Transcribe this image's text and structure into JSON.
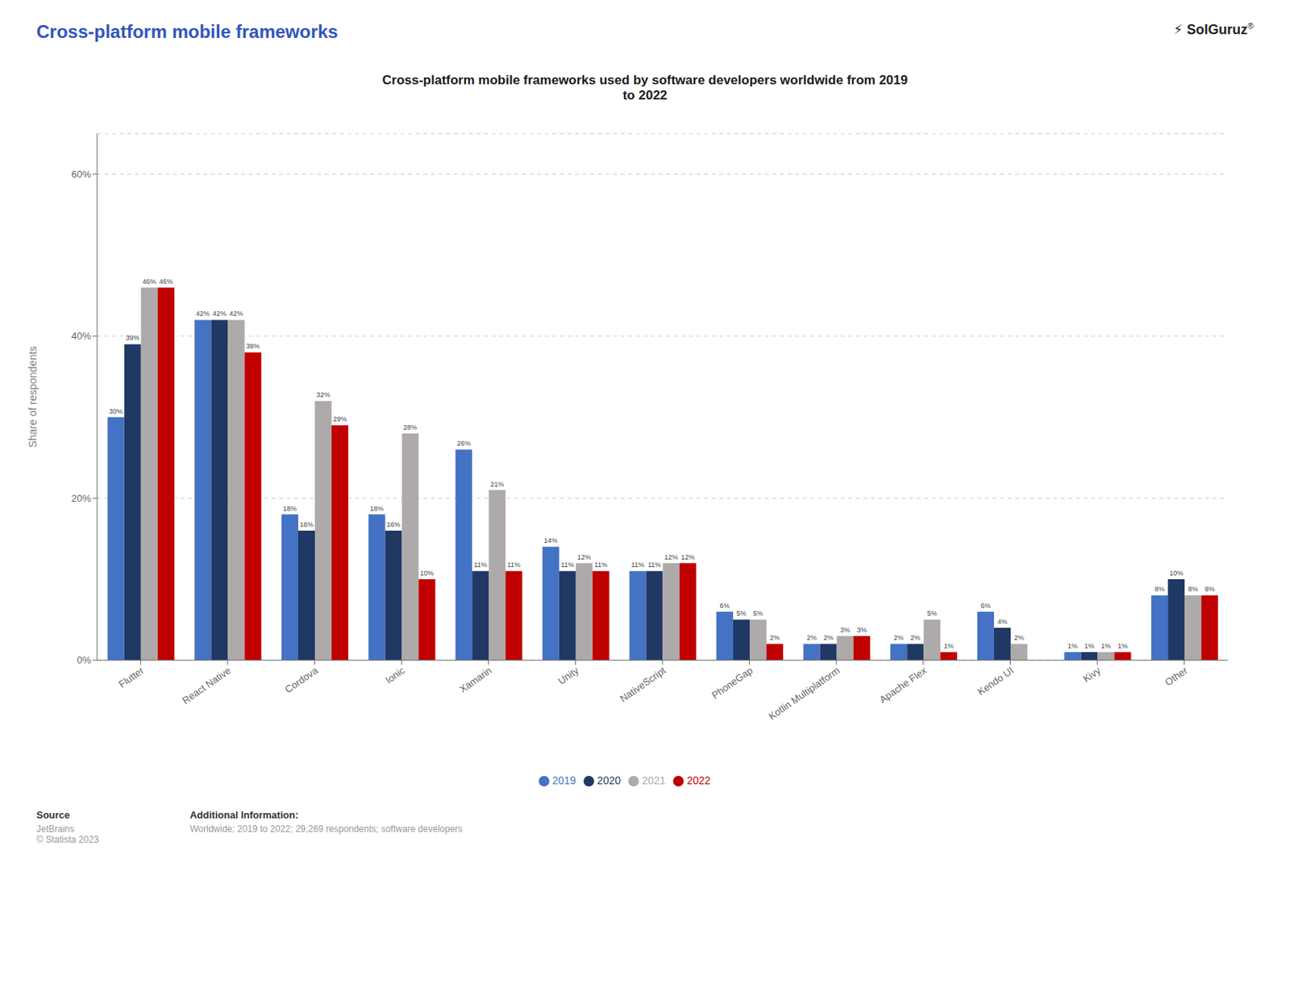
{
  "chart_data": {
    "type": "bar",
    "title": "Cross-platform mobile frameworks",
    "subtitle": "Cross-platform mobile frameworks used by software developers worldwide from 2019\nto 2022",
    "y_label": "Share of respondents",
    "categories": [
      "Flutter",
      "React Native",
      "Cordova",
      "Ionic",
      "Xamarin",
      "Unity",
      "NativeScript",
      "PhoneGap",
      "Kotlin Multiplatform",
      "Apache Flex",
      "Kendo UI",
      "Kivy",
      "Other"
    ],
    "series": [
      {
        "name": "2019",
        "color": "#4472C4",
        "values": [
          30,
          42,
          18,
          18,
          26,
          14,
          11,
          6,
          2,
          2,
          6,
          1,
          8
        ],
        "value_labels": [
          "30%",
          "42%",
          "18%",
          "18%",
          "26%",
          "14%",
          "11%",
          "6%",
          "2%",
          "2%",
          "6%",
          "1%",
          "8%"
        ]
      },
      {
        "name": "2020",
        "color": "#1F3864",
        "values": [
          39,
          42,
          16,
          16,
          11,
          11,
          11,
          5,
          2,
          2,
          4,
          1,
          10
        ],
        "value_labels": [
          "39%",
          "42%",
          "16%",
          "16%",
          "11%",
          "11%",
          "11%",
          "5%",
          "2%",
          "2%",
          "4%",
          "1%",
          "10%"
        ]
      },
      {
        "name": "2021",
        "color": "#AEAAAA",
        "values": [
          46,
          42,
          32,
          28,
          21,
          12,
          12,
          5,
          3,
          5,
          2,
          1,
          8
        ],
        "value_labels": [
          "46%",
          "42%",
          "32%",
          "28%",
          "21%",
          "12%",
          "12%",
          "5%",
          "3%",
          "5%",
          "2%",
          "1%",
          "8%"
        ]
      },
      {
        "name": "2022",
        "color": "#C00000",
        "values": [
          46,
          38,
          29,
          10,
          11,
          11,
          12,
          2,
          3,
          1,
          0,
          1,
          8
        ],
        "value_labels": [
          "46%",
          "38%",
          "29%",
          "10%",
          "11%",
          "11%",
          "12%",
          "2%",
          "3%",
          "1%",
          null,
          "1%",
          "8%"
        ]
      }
    ],
    "ylim": [
      0,
      65
    ],
    "yticks": [
      {
        "value": 0,
        "label": "0%"
      },
      {
        "value": 20,
        "label": "20%"
      },
      {
        "value": 40,
        "label": "40%"
      },
      {
        "value": 60,
        "label": "60%"
      }
    ],
    "grid": true,
    "legend": "bottom",
    "data_labels": true,
    "annotations": [
      "⚡ SolGuruz",
      "®",
      "Source",
      "JetBrains\n© Statista 2023",
      "Additional Information:",
      "Worldwide; 2019 to 2022; 29,269 respondents; software developers"
    ]
  }
}
